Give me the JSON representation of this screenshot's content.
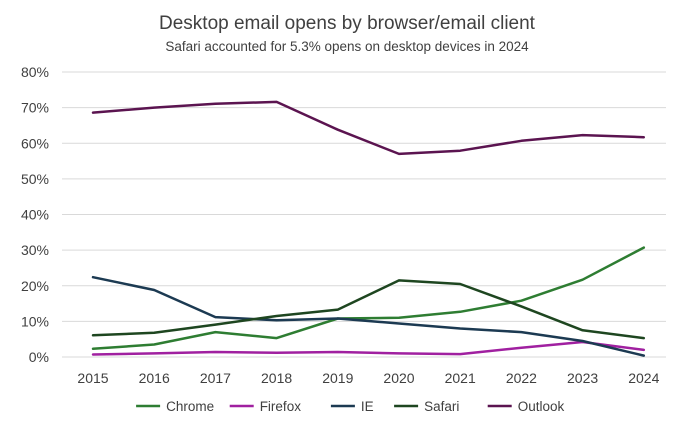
{
  "chart_data": {
    "type": "line",
    "title": "Desktop email opens by browser/email client",
    "subtitle": "Safari accounted for 5.3% opens on desktop devices in 2024",
    "x": [
      "2015",
      "2016",
      "2017",
      "2018",
      "2019",
      "2020",
      "2021",
      "2022",
      "2023",
      "2024"
    ],
    "ylim": [
      0,
      80
    ],
    "yticks": [
      0,
      10,
      20,
      30,
      40,
      50,
      60,
      70,
      80
    ],
    "ytick_format": "%",
    "grid": true,
    "legend_position": "bottom",
    "series": [
      {
        "name": "Chrome",
        "color": "#2e7d32",
        "values": [
          2.3,
          3.5,
          7.0,
          5.3,
          10.8,
          11.0,
          12.7,
          15.8,
          21.7,
          30.7
        ]
      },
      {
        "name": "Firefox",
        "color": "#a020a0",
        "values": [
          0.7,
          1.0,
          1.4,
          1.2,
          1.4,
          1.0,
          0.8,
          2.6,
          4.2,
          2.0
        ]
      },
      {
        "name": "IE",
        "color": "#1c3a52",
        "values": [
          22.4,
          18.8,
          11.2,
          10.3,
          10.8,
          9.4,
          8.0,
          7.0,
          4.5,
          0.4
        ]
      },
      {
        "name": "Safari",
        "color": "#1e4620",
        "values": [
          6.1,
          6.8,
          9.1,
          11.5,
          13.3,
          21.5,
          20.5,
          14.2,
          7.5,
          5.3
        ]
      },
      {
        "name": "Outlook",
        "color": "#5b1450",
        "values": [
          68.6,
          70.0,
          71.1,
          71.6,
          63.8,
          57.0,
          57.9,
          60.7,
          62.3,
          61.7
        ]
      }
    ]
  }
}
